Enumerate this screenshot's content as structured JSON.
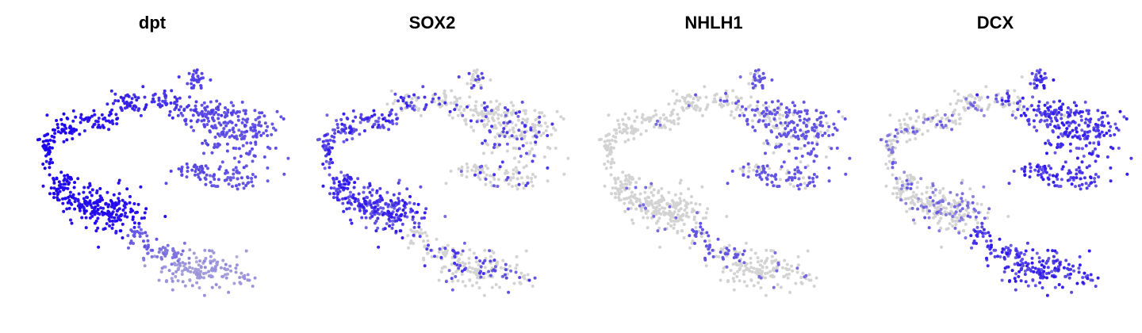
{
  "chart_data": [
    {
      "type": "scatter",
      "title": "dpt",
      "gene": "dpt",
      "xlabel": "",
      "ylabel": ""
    },
    {
      "type": "scatter",
      "title": "SOX2",
      "gene": "SOX2",
      "xlabel": "",
      "ylabel": ""
    },
    {
      "type": "scatter",
      "title": "NHLH1",
      "gene": "NHLH1",
      "xlabel": "",
      "ylabel": ""
    },
    {
      "type": "scatter",
      "title": "DCX",
      "gene": "DCX",
      "xlabel": "",
      "ylabel": ""
    }
  ],
  "colors": {
    "low": "#d3d3d3",
    "high": "#1a00f0",
    "mid": "#7b5cf0",
    "background": "#ffffff"
  },
  "point_style": "small filled circles, no axes, no legend"
}
